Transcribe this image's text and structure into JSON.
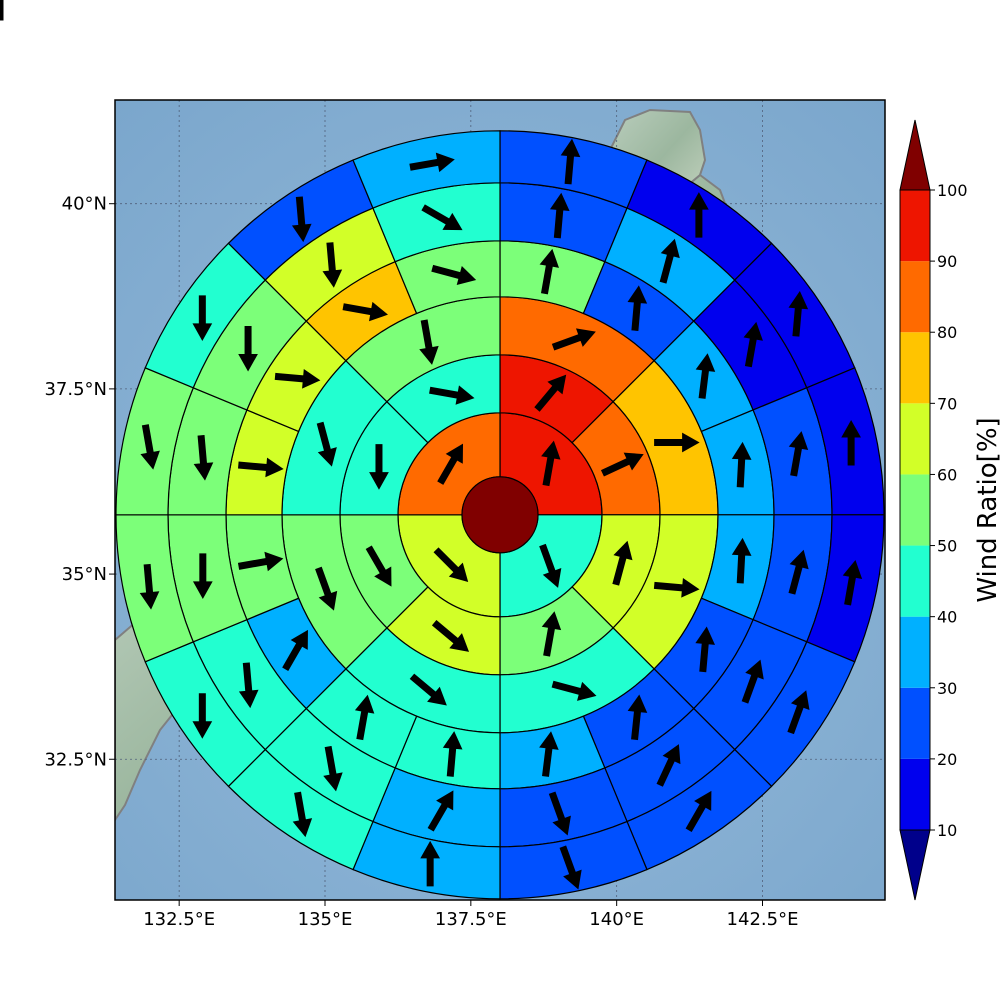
{
  "chart_data": {
    "type": "heatmap",
    "subtype": "polar-sector-wind-map",
    "axes": {
      "lon_range": [
        131.4,
        144.6
      ],
      "lat_range": [
        30.6,
        41.4
      ],
      "x_ticks": [
        132.5,
        135,
        137.5,
        140,
        142.5
      ],
      "x_tick_labels": [
        "132.5°E",
        "135°E",
        "137.5°E",
        "140°E",
        "142.5°E"
      ],
      "y_ticks": [
        32.5,
        35,
        37.5,
        40
      ],
      "y_tick_labels": [
        "32.5°N",
        "35°N",
        "37.5°N",
        "40°N"
      ],
      "grid": true
    },
    "center_lon": 138.0,
    "center_lat": 35.8,
    "center_disc_color": "#800000",
    "rings": [
      {
        "sectors": 4,
        "values": [
          95,
          45,
          65,
          85
        ],
        "arrows": [
          10,
          160,
          135,
          30
        ]
      },
      {
        "sectors": 8,
        "values": [
          95,
          85,
          65,
          55,
          65,
          55,
          45,
          45
        ],
        "arrows": [
          40,
          65,
          15,
          10,
          130,
          150,
          180,
          100
        ]
      },
      {
        "sectors": 8,
        "values": [
          85,
          75,
          65,
          45,
          45,
          55,
          45,
          55
        ],
        "arrows": [
          70,
          90,
          95,
          105,
          130,
          160,
          165,
          170
        ]
      },
      {
        "sectors": 16,
        "values": [
          55,
          25,
          35,
          35,
          35,
          25,
          25,
          35,
          45,
          45,
          35,
          55,
          65,
          65,
          75,
          55
        ],
        "arrows": [
          10,
          5,
          7,
          3,
          3,
          5,
          6,
          7,
          5,
          10,
          30,
          80,
          95,
          95,
          100,
          105
        ]
      },
      {
        "sectors": 16,
        "values": [
          25,
          35,
          15,
          25,
          25,
          25,
          25,
          25,
          35,
          45,
          45,
          55,
          55,
          55,
          65,
          45
        ],
        "arrows": [
          5,
          15,
          10,
          10,
          15,
          20,
          25,
          160,
          30,
          170,
          175,
          180,
          175,
          180,
          175,
          120
        ]
      },
      {
        "sectors": 16,
        "values": [
          25,
          15,
          15,
          15,
          15,
          25,
          25,
          25,
          35,
          45,
          45,
          55,
          55,
          45,
          25,
          35
        ],
        "arrows": [
          5,
          0,
          5,
          0,
          10,
          20,
          30,
          160,
          0,
          170,
          180,
          175,
          170,
          180,
          175,
          80
        ]
      },
      {
        "sectors": 16,
        "values": [
          25,
          25,
          25,
          15,
          15,
          15,
          25,
          25,
          35,
          45,
          55,
          55,
          45,
          45,
          35,
          45
        ],
        "arrows": [
          5,
          0,
          5,
          0,
          5,
          0,
          10,
          20,
          0,
          170,
          175,
          180,
          175,
          180,
          175,
          180
        ]
      }
    ],
    "colorbar": {
      "label": "Wind Ratio[%]",
      "ticks": [
        10,
        20,
        30,
        40,
        50,
        60,
        70,
        80,
        90,
        100
      ],
      "tick_labels": [
        "10",
        "20",
        "30",
        "40",
        "50",
        "60",
        "70",
        "80",
        "90",
        "100"
      ],
      "bins": [
        {
          "range": [
            10,
            20
          ],
          "color": "#0000ee"
        },
        {
          "range": [
            20,
            30
          ],
          "color": "#0050ff"
        },
        {
          "range": [
            30,
            40
          ],
          "color": "#00b0ff"
        },
        {
          "range": [
            40,
            50
          ],
          "color": "#22ffd0"
        },
        {
          "range": [
            50,
            60
          ],
          "color": "#7cff79"
        },
        {
          "range": [
            60,
            70
          ],
          "color": "#d2ff28"
        },
        {
          "range": [
            70,
            80
          ],
          "color": "#ffc400"
        },
        {
          "range": [
            80,
            90
          ],
          "color": "#ff6a00"
        },
        {
          "range": [
            90,
            100
          ],
          "color": "#ee1500"
        }
      ],
      "under_color": "#00008b",
      "over_color": "#800000"
    }
  }
}
